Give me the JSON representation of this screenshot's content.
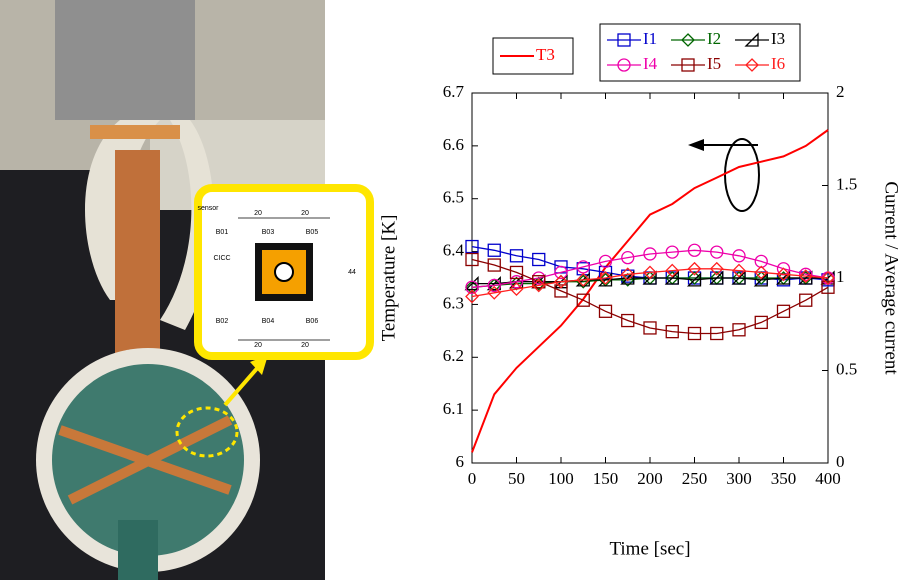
{
  "chart_data": {
    "type": "line",
    "xlabel": "Time [sec]",
    "ylabel": "Temperature [K]",
    "y2label": "Current / Average current",
    "x": [
      0,
      25,
      50,
      75,
      100,
      125,
      150,
      175,
      200,
      225,
      250,
      275,
      300,
      325,
      350,
      375,
      400
    ],
    "series": [
      {
        "name": "T3",
        "color": "#ff0000",
        "marker": "none",
        "values": [
          6.02,
          6.13,
          6.18,
          6.22,
          6.26,
          6.31,
          6.37,
          6.42,
          6.47,
          6.49,
          6.52,
          6.54,
          6.56,
          6.57,
          6.58,
          6.6,
          6.63
        ]
      },
      {
        "name": "I1",
        "color": "#0000cc",
        "marker": "square",
        "axis": "y2",
        "values": [
          1.17,
          1.15,
          1.12,
          1.1,
          1.06,
          1.05,
          1.03,
          1.01,
          1.0,
          1.0,
          1.0,
          1.0,
          1.0,
          1.0,
          0.99,
          1.0,
          0.99
        ]
      },
      {
        "name": "I2",
        "color": "#006600",
        "marker": "diamond",
        "axis": "y2",
        "values": [
          0.95,
          0.96,
          0.97,
          0.97,
          0.98,
          0.98,
          0.99,
          0.99,
          1.0,
          1.0,
          1.0,
          1.0,
          1.0,
          1.0,
          1.0,
          1.0,
          1.0
        ]
      },
      {
        "name": "I3",
        "color": "#000000",
        "marker": "triangle",
        "axis": "y2",
        "values": [
          0.97,
          0.97,
          0.98,
          0.98,
          0.98,
          0.99,
          0.99,
          1.0,
          1.0,
          1.0,
          0.99,
          1.0,
          1.0,
          0.99,
          1.0,
          1.0,
          1.0
        ]
      },
      {
        "name": "I4",
        "color": "#ee00aa",
        "marker": "circle",
        "axis": "y2",
        "values": [
          0.95,
          0.96,
          0.98,
          1.0,
          1.03,
          1.06,
          1.09,
          1.11,
          1.13,
          1.14,
          1.15,
          1.14,
          1.12,
          1.09,
          1.05,
          1.02,
          1.0
        ]
      },
      {
        "name": "I5",
        "color": "#8b0000",
        "marker": "square",
        "axis": "y2",
        "values": [
          1.1,
          1.07,
          1.03,
          0.98,
          0.93,
          0.88,
          0.82,
          0.77,
          0.73,
          0.71,
          0.7,
          0.7,
          0.72,
          0.76,
          0.82,
          0.88,
          0.95
        ]
      },
      {
        "name": "I6",
        "color": "#ff2020",
        "marker": "diamond",
        "axis": "y2",
        "values": [
          0.9,
          0.92,
          0.94,
          0.96,
          0.98,
          0.99,
          1.0,
          1.02,
          1.03,
          1.04,
          1.05,
          1.05,
          1.04,
          1.03,
          1.02,
          1.01,
          1.0
        ]
      }
    ],
    "xlim": [
      0,
      400
    ],
    "xticks": [
      0,
      50,
      100,
      150,
      200,
      250,
      300,
      350,
      400
    ],
    "ylim": [
      6,
      6.7
    ],
    "yticks": [
      6,
      6.1,
      6.2,
      6.3,
      6.4,
      6.5,
      6.6,
      6.7
    ],
    "y2lim": [
      0,
      2
    ],
    "y2ticks": [
      0,
      0.5,
      1,
      1.5,
      2
    ]
  },
  "inset": {
    "labels": [
      "sensor",
      "20",
      "20",
      "B01",
      "B03",
      "B05",
      "CICC",
      "44",
      "B02",
      "B04",
      "B06",
      "20",
      "20"
    ]
  }
}
